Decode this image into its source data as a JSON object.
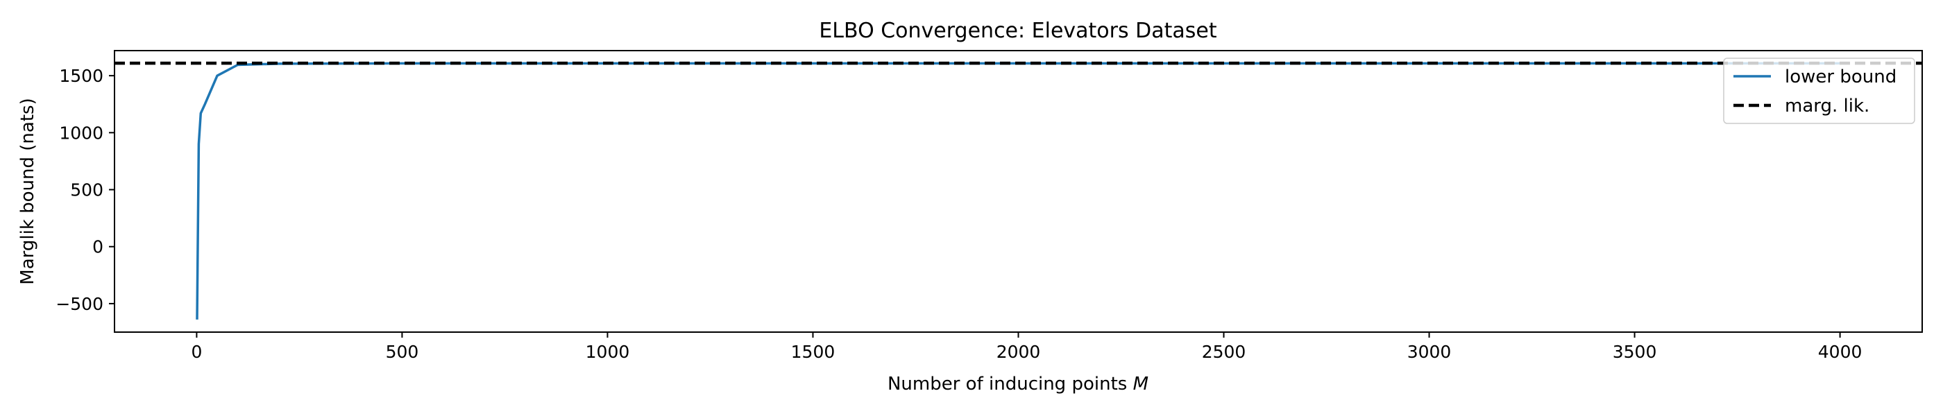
{
  "chart_data": {
    "type": "line",
    "title": "ELBO Convergence: Elevators Dataset",
    "xlabel": "Number of inducing points M",
    "xlabel_main": "Number of inducing points ",
    "xlabel_var": "M",
    "ylabel": "Marglik bound (nats)",
    "xlim": [
      -200,
      4200
    ],
    "ylim": [
      -750,
      1720
    ],
    "xticks": [
      0,
      500,
      1000,
      1500,
      2000,
      2500,
      3000,
      3500,
      4000
    ],
    "yticks": [
      -500,
      0,
      500,
      1000,
      1500
    ],
    "grid": false,
    "legend_position": "top-right",
    "series": [
      {
        "name": "lower bound",
        "color": "#1f77b4",
        "style": "solid",
        "x": [
          1,
          5,
          10,
          20,
          50,
          100,
          200,
          500,
          1000,
          2000,
          3000,
          4000
        ],
        "y": [
          -640,
          900,
          1170,
          1250,
          1500,
          1595,
          1605,
          1608,
          1608,
          1608,
          1608,
          1608
        ]
      },
      {
        "name": "marg. lik.",
        "color": "#000000",
        "style": "dashed",
        "y_const": 1610
      }
    ]
  }
}
